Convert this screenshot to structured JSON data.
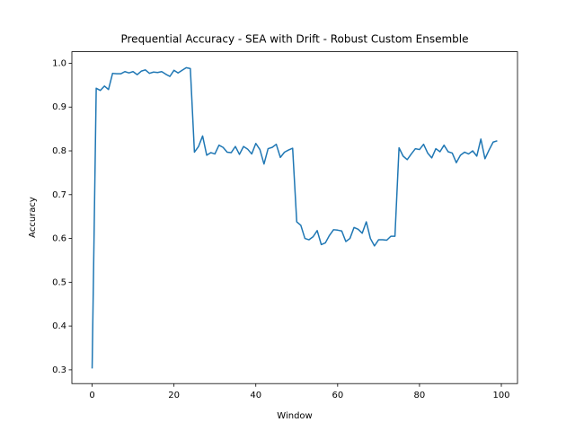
{
  "chart_data": {
    "type": "line",
    "title": "Prequential Accuracy - SEA with Drift - Robust Custom Ensemble",
    "x_label": "Window",
    "y_label": "Accuracy",
    "color": "#1f77b4",
    "x": [
      0,
      1,
      2,
      3,
      4,
      5,
      6,
      7,
      8,
      9,
      10,
      11,
      12,
      13,
      14,
      15,
      16,
      17,
      18,
      19,
      20,
      21,
      22,
      23,
      24,
      25,
      26,
      27,
      28,
      29,
      30,
      31,
      32,
      33,
      34,
      35,
      36,
      37,
      38,
      39,
      40,
      41,
      42,
      43,
      44,
      45,
      46,
      47,
      48,
      49,
      50,
      51,
      52,
      53,
      54,
      55,
      56,
      57,
      58,
      59,
      60,
      61,
      62,
      63,
      64,
      65,
      66,
      67,
      68,
      69,
      70,
      71,
      72,
      73,
      74,
      75,
      76,
      77,
      78,
      79,
      80,
      81,
      82,
      83,
      84,
      85,
      86,
      87,
      88,
      89,
      90,
      91,
      92,
      93,
      94,
      95,
      96,
      97,
      98,
      99
    ],
    "values": [
      0.303,
      0.943,
      0.938,
      0.948,
      0.94,
      0.977,
      0.976,
      0.976,
      0.981,
      0.978,
      0.981,
      0.974,
      0.982,
      0.985,
      0.977,
      0.98,
      0.979,
      0.981,
      0.975,
      0.97,
      0.984,
      0.978,
      0.984,
      0.99,
      0.988,
      0.797,
      0.81,
      0.834,
      0.79,
      0.796,
      0.793,
      0.813,
      0.808,
      0.797,
      0.796,
      0.81,
      0.792,
      0.81,
      0.804,
      0.793,
      0.817,
      0.803,
      0.77,
      0.805,
      0.808,
      0.815,
      0.785,
      0.797,
      0.802,
      0.806,
      0.638,
      0.63,
      0.6,
      0.597,
      0.604,
      0.618,
      0.586,
      0.59,
      0.607,
      0.62,
      0.619,
      0.617,
      0.593,
      0.6,
      0.625,
      0.621,
      0.612,
      0.638,
      0.6,
      0.583,
      0.597,
      0.597,
      0.596,
      0.605,
      0.605,
      0.807,
      0.788,
      0.78,
      0.793,
      0.805,
      0.803,
      0.815,
      0.795,
      0.784,
      0.805,
      0.798,
      0.813,
      0.798,
      0.795,
      0.773,
      0.79,
      0.797,
      0.793,
      0.8,
      0.788,
      0.827,
      0.782,
      0.802,
      0.82,
      0.823
    ],
    "xlim": [
      -4.95,
      103.95
    ],
    "xticks": [
      0,
      20,
      40,
      60,
      80,
      100
    ],
    "ylim": [
      0.2686,
      1.0264
    ],
    "yticks": [
      0.3,
      0.4,
      0.5,
      0.6,
      0.7,
      0.8,
      0.9,
      {
        "value": 1,
        "label": "1.0"
      }
    ]
  }
}
